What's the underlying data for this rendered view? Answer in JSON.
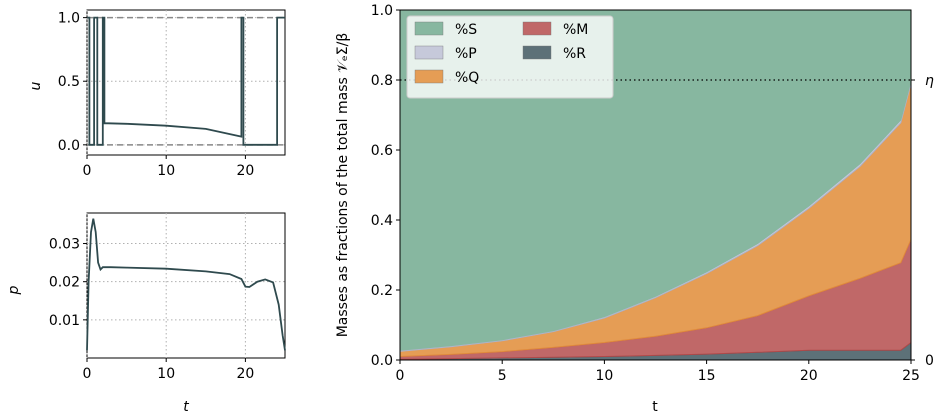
{
  "chart_data": [
    {
      "type": "line",
      "panel": "top-left",
      "xlabel": "",
      "ylabel": "u",
      "xlim": [
        0,
        25
      ],
      "ylim": [
        -0.08,
        1.06
      ],
      "xticks": [
        "0",
        "10",
        "20"
      ],
      "yticks": [
        "0.0",
        "0.5",
        "1.0"
      ],
      "grid": true,
      "reference_lines": [
        0.0,
        1.0
      ],
      "series": [
        {
          "x": [
            0,
            0.3,
            0.3,
            0.9,
            0.9,
            1.3,
            1.3,
            2.0,
            2.0,
            2.2,
            2.2,
            5,
            10,
            15,
            19.5,
            19.5,
            19.75,
            19.75,
            24.0,
            24.0,
            24.4,
            24.4,
            25
          ],
          "y": [
            1.0,
            1.0,
            0.0,
            0.0,
            1.0,
            1.0,
            0.0,
            0.0,
            1.0,
            1.0,
            0.17,
            0.165,
            0.15,
            0.125,
            0.065,
            1.0,
            1.0,
            0.0,
            0.0,
            1.0,
            1.0,
            1.0,
            1.0
          ]
        }
      ]
    },
    {
      "type": "line",
      "panel": "bottom-left",
      "xlabel": "t",
      "ylabel": "p",
      "xlim": [
        0,
        25
      ],
      "ylim": [
        0,
        0.038
      ],
      "xticks": [
        "0",
        "10",
        "20"
      ],
      "yticks": [
        "0.01",
        "0.02",
        "0.03"
      ],
      "grid": true,
      "series": [
        {
          "x": [
            0,
            0.2,
            0.5,
            0.8,
            1.1,
            1.4,
            1.7,
            2.0,
            3,
            5,
            10,
            15,
            18,
            19.5,
            20,
            20.5,
            21.5,
            22.5,
            23.5,
            24.2,
            24.7,
            25
          ],
          "y": [
            0.002,
            0.02,
            0.033,
            0.0365,
            0.033,
            0.025,
            0.0232,
            0.0238,
            0.0238,
            0.0237,
            0.0234,
            0.0227,
            0.022,
            0.0207,
            0.0187,
            0.0186,
            0.02,
            0.0206,
            0.0198,
            0.014,
            0.006,
            0.002
          ]
        }
      ]
    },
    {
      "type": "area",
      "panel": "right",
      "xlabel": "t",
      "ylabel": "Masses as fractions of the total mass 𝒱ₑΣ/β",
      "xlim": [
        0,
        25
      ],
      "ylim": [
        0,
        1.0
      ],
      "xticks": [
        "0",
        "5",
        "10",
        "15",
        "20",
        "25"
      ],
      "yticks": [
        "0.0",
        "0.2",
        "0.4",
        "0.6",
        "0.8",
        "1.0"
      ],
      "right_ticks": [
        "η",
        "0"
      ],
      "grid": false,
      "reference_line": {
        "y": 0.8,
        "label": "η"
      },
      "legend": {
        "placement": "top-left",
        "entries": [
          "%S",
          "%P",
          "%Q",
          "%M",
          "%R"
        ]
      },
      "x": [
        0,
        2.5,
        5,
        7.5,
        10,
        12.5,
        15,
        17.5,
        20,
        22.5,
        24.5,
        25
      ],
      "series": [
        {
          "name": "%R",
          "color": "#5d7178",
          "values": [
            0.002,
            0.004,
            0.006,
            0.008,
            0.01,
            0.013,
            0.017,
            0.022,
            0.028,
            0.028,
            0.028,
            0.05
          ]
        },
        {
          "name": "%M",
          "color": "#c06868",
          "values": [
            0.008,
            0.012,
            0.018,
            0.028,
            0.04,
            0.055,
            0.075,
            0.105,
            0.155,
            0.205,
            0.25,
            0.295
          ]
        },
        {
          "name": "%Q",
          "color": "#e59d55",
          "values": [
            0.015,
            0.022,
            0.031,
            0.045,
            0.07,
            0.11,
            0.155,
            0.2,
            0.25,
            0.32,
            0.4,
            0.445
          ]
        },
        {
          "name": "%P",
          "color": "#c6c9da",
          "values": [
            0.003,
            0.003,
            0.003,
            0.003,
            0.004,
            0.004,
            0.005,
            0.006,
            0.007,
            0.008,
            0.008,
            0.008
          ]
        },
        {
          "name": "%S",
          "color": "#87b7a0",
          "values": [
            0.972,
            0.959,
            0.942,
            0.916,
            0.876,
            0.818,
            0.748,
            0.667,
            0.56,
            0.439,
            0.314,
            0.202
          ]
        }
      ]
    }
  ]
}
